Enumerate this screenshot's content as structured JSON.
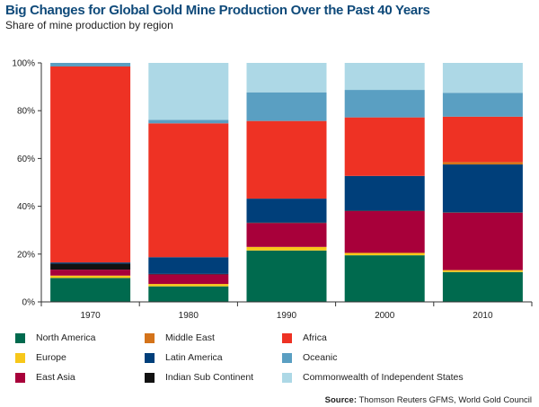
{
  "header": {
    "title": "Big Changes for Global Gold Mine Production Over the Past 40 Years",
    "subtitle": "Share of mine production by region"
  },
  "source": {
    "label": "Source:",
    "text": "Thomson Reuters GFMS, World Gold Council"
  },
  "legend": {
    "items": [
      {
        "name": "North America",
        "color": "#006a4e"
      },
      {
        "name": "Middle East",
        "color": "#d4731a"
      },
      {
        "name": "Africa",
        "color": "#ee3224"
      },
      {
        "name": "Europe",
        "color": "#f7c71a"
      },
      {
        "name": "Latin America",
        "color": "#003f7a"
      },
      {
        "name": "Oceanic",
        "color": "#5a9fc2"
      },
      {
        "name": "East Asia",
        "color": "#a8003a"
      },
      {
        "name": "Indian Sub Continent",
        "color": "#111111"
      },
      {
        "name": "Commonwealth of Independent States",
        "color": "#add8e6"
      }
    ]
  },
  "chart_data": {
    "type": "bar",
    "stacked": true,
    "title": "Big Changes for Global Gold Mine Production Over the Past 40 Years",
    "subtitle": "Share of mine production by region",
    "categories": [
      "1970",
      "1980",
      "1990",
      "2000",
      "2010"
    ],
    "ylim": [
      0,
      100
    ],
    "yticks": [
      "0%",
      "20%",
      "40%",
      "60%",
      "80%",
      "100%"
    ],
    "grid": false,
    "legend_position": "bottom",
    "series": [
      {
        "name": "North America",
        "color": "#006a4e",
        "values": [
          10,
          6.5,
          21.5,
          19.5,
          12.5
        ]
      },
      {
        "name": "Europe",
        "color": "#f7c71a",
        "values": [
          1,
          1,
          1.5,
          1,
          0.8
        ]
      },
      {
        "name": "East Asia",
        "color": "#a8003a",
        "values": [
          2.5,
          4,
          10,
          17.5,
          24
        ]
      },
      {
        "name": "Indian Sub Continent",
        "color": "#111111",
        "values": [
          2.5,
          0.2,
          0.2,
          0.2,
          0.2
        ]
      },
      {
        "name": "Latin America",
        "color": "#003f7a",
        "values": [
          0.5,
          7,
          10,
          14.5,
          20
        ]
      },
      {
        "name": "Middle East",
        "color": "#d4731a",
        "values": [
          0,
          0,
          0,
          0,
          1
        ]
      },
      {
        "name": "Africa",
        "color": "#ee3224",
        "values": [
          82,
          56,
          32.5,
          24.5,
          19
        ]
      },
      {
        "name": "Oceanic",
        "color": "#5a9fc2",
        "values": [
          1.5,
          1.5,
          12,
          11.5,
          10
        ]
      },
      {
        "name": "Commonwealth of Independent States",
        "color": "#add8e6",
        "values": [
          0,
          23.8,
          12.3,
          11.3,
          12.5
        ]
      }
    ]
  }
}
